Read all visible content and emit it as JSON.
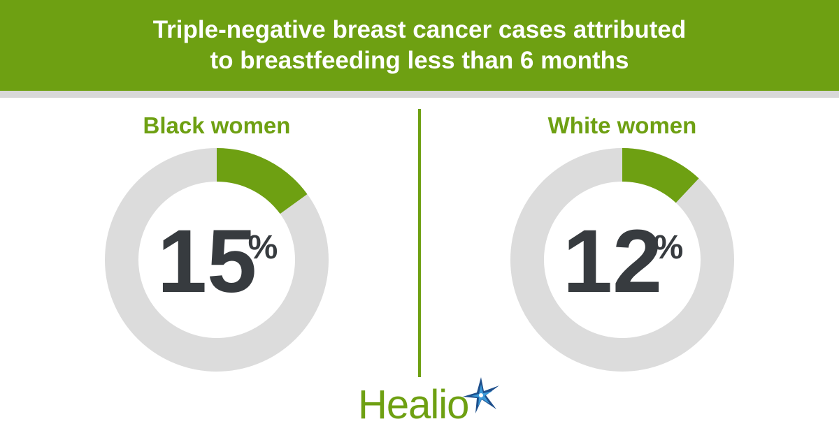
{
  "header": {
    "title_line1": "Triple-negative breast cancer cases attributed",
    "title_line2": "to breastfeeding less than 6 months"
  },
  "chart_data": [
    {
      "type": "pie",
      "title": "Black women",
      "value": 15,
      "value_text": "15",
      "unit": "%",
      "max": 100,
      "colors": {
        "value": "#6ea012",
        "remainder": "#dcdcdc"
      }
    },
    {
      "type": "pie",
      "title": "White women",
      "value": 12,
      "value_text": "12",
      "unit": "%",
      "max": 100,
      "colors": {
        "value": "#6ea012",
        "remainder": "#dcdcdc"
      }
    }
  ],
  "brand": {
    "name": "Healio",
    "icon": "star-burst-icon",
    "colors": {
      "text": "#6ea012",
      "star_dark": "#1d4f8c",
      "star_light": "#3b9ad9"
    }
  }
}
